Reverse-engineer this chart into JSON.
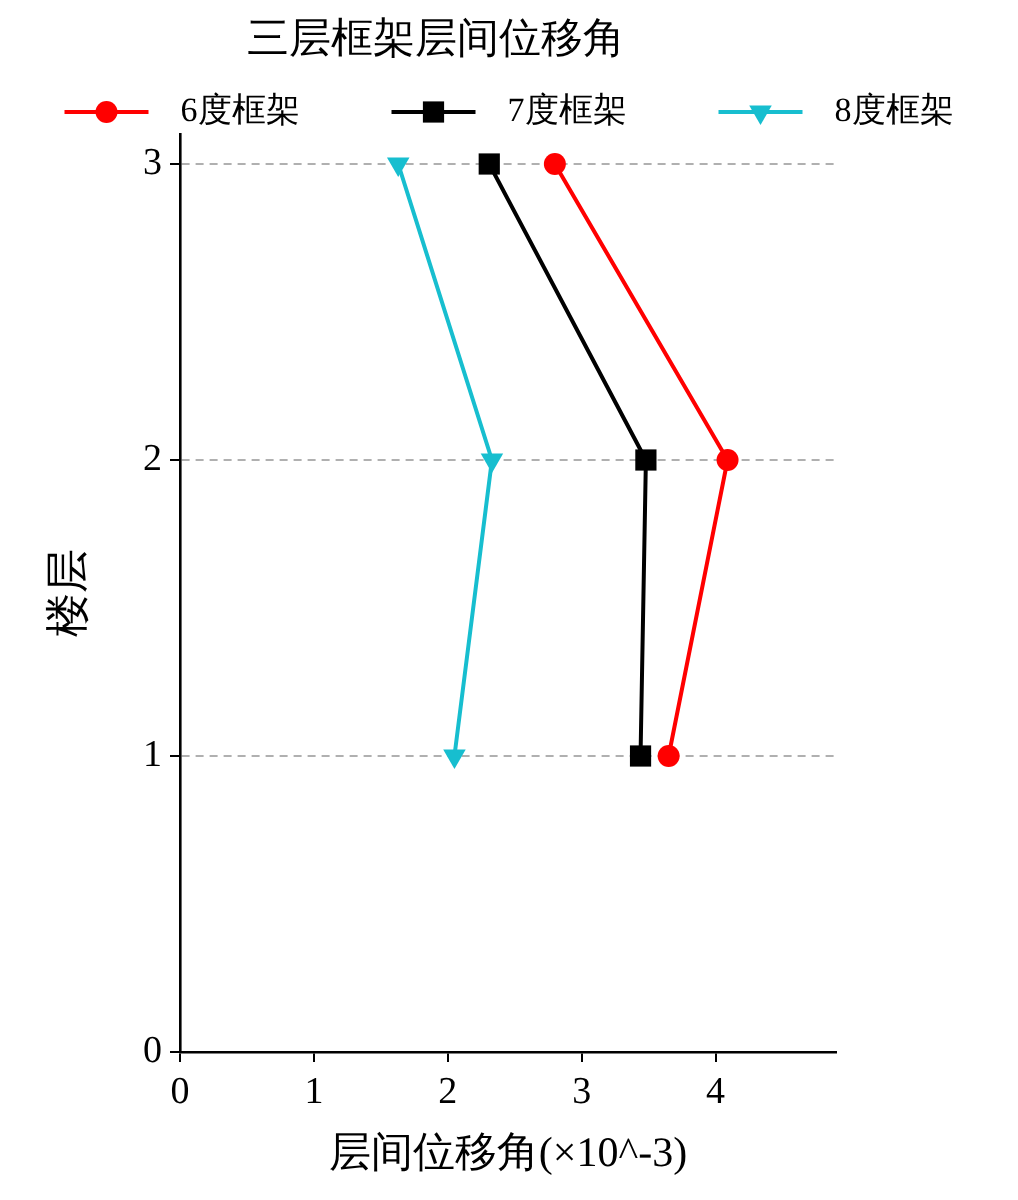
{
  "chart_data": {
    "type": "line",
    "title": "三层框架层间位移角",
    "xlabel": "层间位移角(×10^-3)",
    "ylabel": "楼层",
    "series": [
      {
        "name": "6度框架",
        "color": "#ff0000",
        "marker": "circle",
        "x": [
          3.65,
          4.09,
          2.8
        ],
        "values": [
          1,
          2,
          3
        ]
      },
      {
        "name": "7度框架",
        "color": "#000000",
        "marker": "square",
        "x": [
          3.44,
          3.48,
          2.31
        ],
        "values": [
          1,
          2,
          3
        ]
      },
      {
        "name": "8度框架",
        "color": "#17becf",
        "marker": "triangle",
        "x": [
          2.05,
          2.33,
          1.63
        ],
        "values": [
          1,
          2,
          3
        ]
      }
    ],
    "xlim": [
      0,
      4.9
    ],
    "xticks": [
      0,
      1,
      2,
      3,
      4
    ],
    "ylim": [
      0,
      3.1
    ],
    "yticks": [
      0,
      1,
      2,
      3
    ],
    "grid": "y",
    "legend": "top"
  }
}
